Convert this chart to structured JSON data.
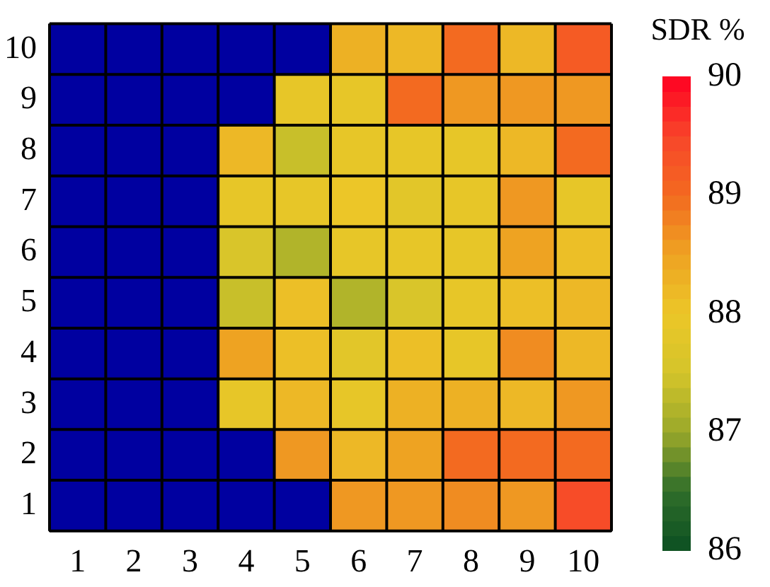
{
  "chart_data": {
    "type": "heatmap",
    "clabel": "SDR %",
    "categories": [
      "1",
      "2",
      "3",
      "4",
      "5",
      "6",
      "7",
      "8",
      "9",
      "10"
    ],
    "y_categories": [
      "10",
      "9",
      "8",
      "7",
      "6",
      "5",
      "4",
      "3",
      "2",
      "1"
    ],
    "cells": [
      [
        null,
        null,
        null,
        null,
        null,
        88.3,
        88.2,
        89.0,
        88.2,
        89.2
      ],
      [
        null,
        null,
        null,
        null,
        87.9,
        87.9,
        89.0,
        88.6,
        88.6,
        88.6
      ],
      [
        null,
        null,
        null,
        88.2,
        87.4,
        87.9,
        87.9,
        87.9,
        88.2,
        89.0
      ],
      [
        null,
        null,
        null,
        87.9,
        87.9,
        88.0,
        87.8,
        87.9,
        88.6,
        87.9
      ],
      [
        null,
        null,
        null,
        87.6,
        87.2,
        87.9,
        87.9,
        87.9,
        88.5,
        88.1
      ],
      [
        null,
        null,
        null,
        87.4,
        88.1,
        87.2,
        87.6,
        87.9,
        88.1,
        88.2
      ],
      [
        null,
        null,
        null,
        88.5,
        88.1,
        87.8,
        88.1,
        87.9,
        88.7,
        88.2
      ],
      [
        null,
        null,
        null,
        87.9,
        88.2,
        87.9,
        88.3,
        88.3,
        88.2,
        88.6
      ],
      [
        null,
        null,
        null,
        null,
        88.6,
        88.2,
        88.5,
        89.0,
        89.0,
        89.0
      ],
      [
        null,
        null,
        null,
        null,
        null,
        88.6,
        88.6,
        88.7,
        88.6,
        89.4
      ]
    ],
    "clim": [
      86,
      90
    ],
    "cticks": [
      86,
      87,
      88,
      89,
      90
    ]
  }
}
